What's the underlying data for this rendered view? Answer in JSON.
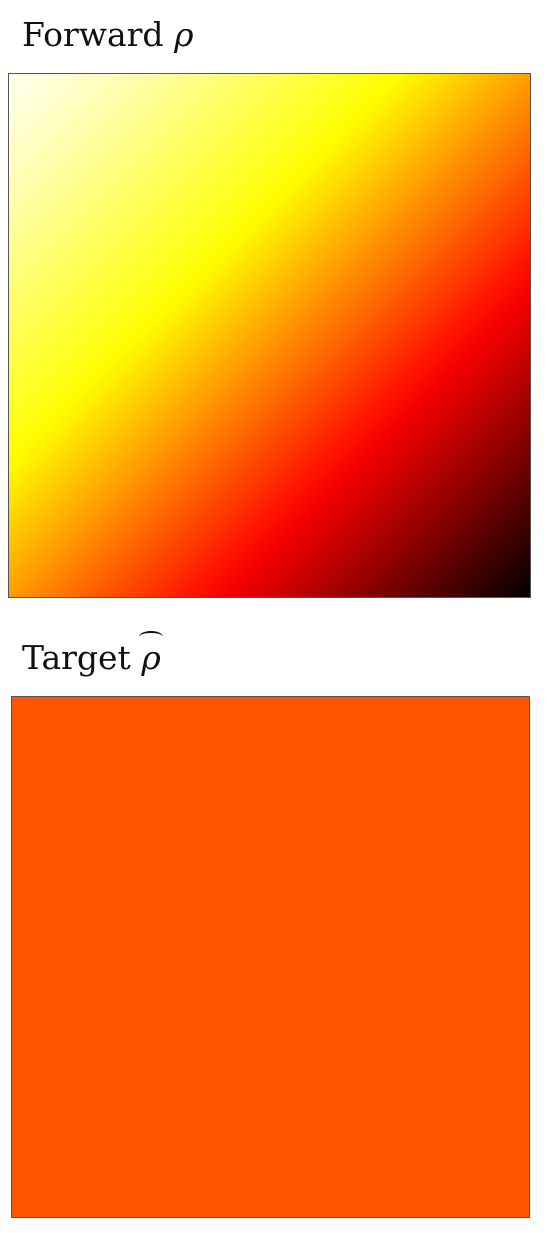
{
  "chart_data": [
    {
      "type": "heatmap",
      "title": "Forward",
      "title_symbol": "ρ",
      "colormap": "hot",
      "colormap_stops": [
        "#ffffff",
        "#ffff00",
        "#ff0000",
        "#000000"
      ],
      "field": {
        "pattern": "diagonal gradient",
        "corner_top_left": 0.98,
        "corner_top_right": 0.58,
        "corner_bottom_left": 0.42,
        "corner_bottom_right": 0.0
      }
    },
    {
      "type": "heatmap",
      "title": "Target",
      "title_symbol": "ρ",
      "title_symbol_accent": "hat",
      "colormap": "hot",
      "field": {
        "pattern": "uniform",
        "fill_color": "#ff5500"
      }
    }
  ]
}
